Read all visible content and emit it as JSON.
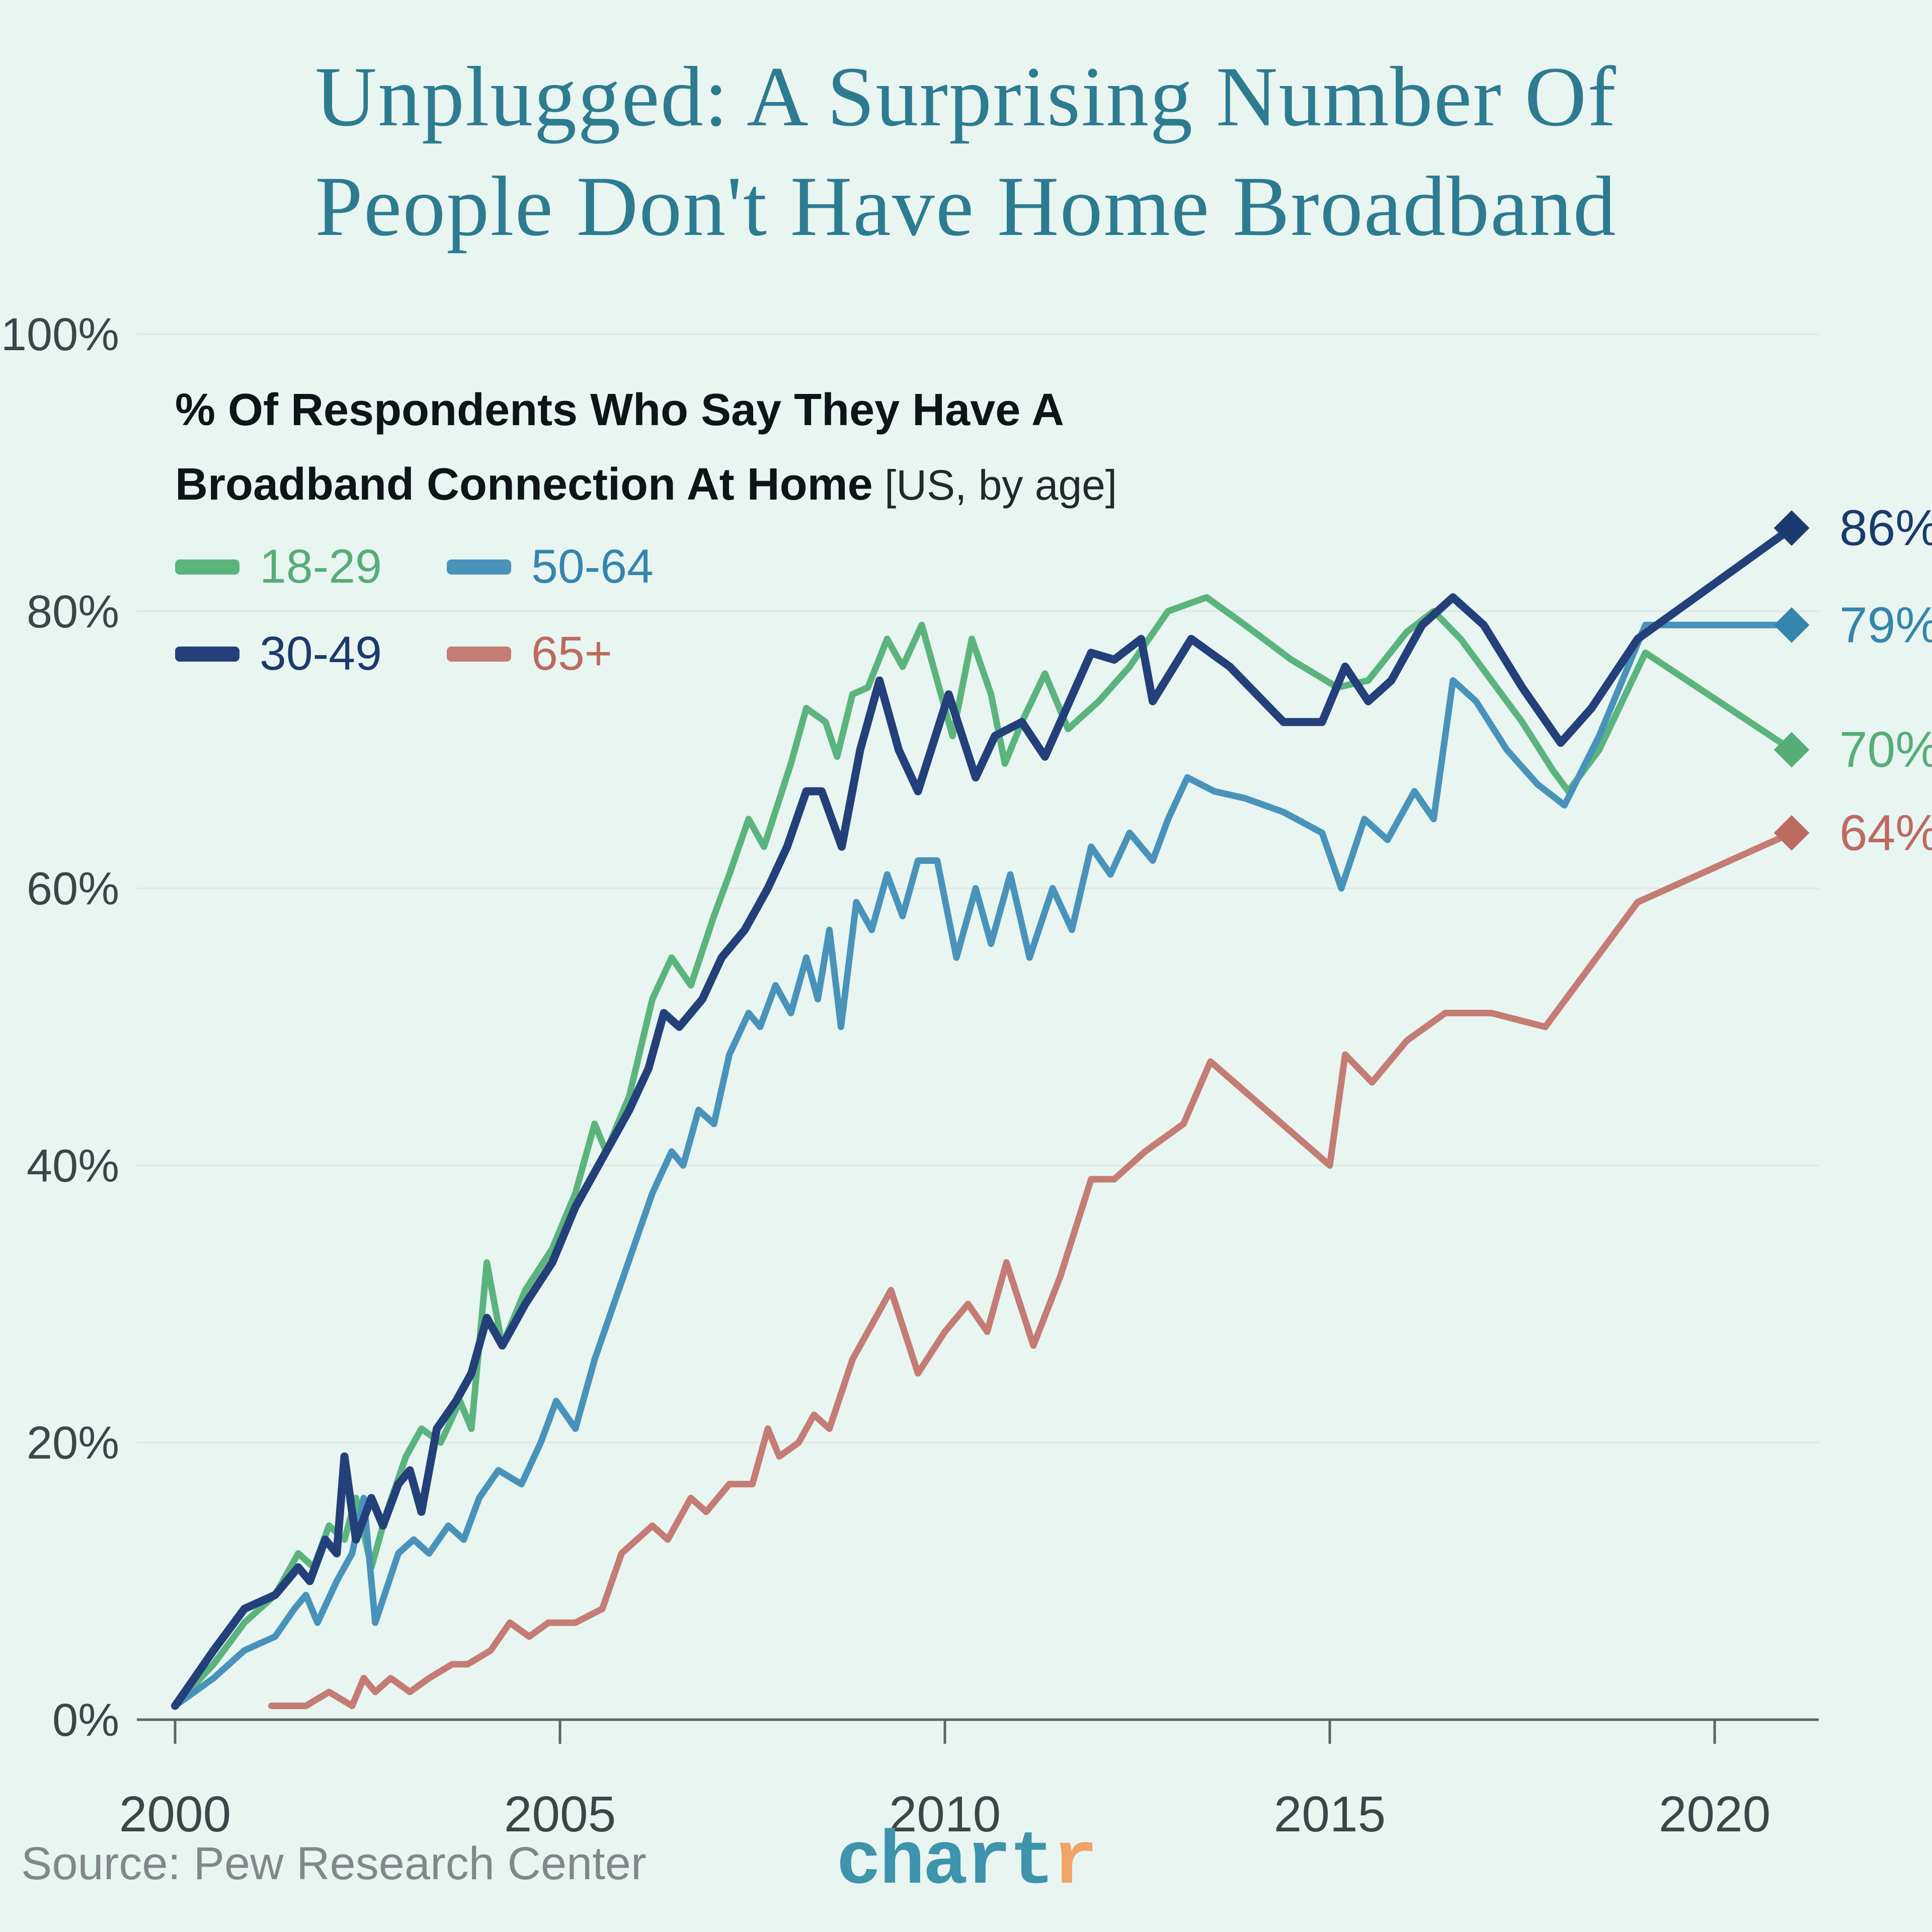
{
  "title": {
    "line1": "Unplugged: A Surprising Number Of",
    "line2": "People Don't Have Home Broadband"
  },
  "subtitle": {
    "line1": "% Of Respondents Who Say They Have A",
    "line2_main": "Broadband Connection At Home",
    "line2_note": " [US, by age]"
  },
  "source": "Source: Pew Research Center",
  "logo": {
    "part1": "chart",
    "part2": "r",
    "part1_color": "#3e93ad",
    "part2_color": "#f0a467"
  },
  "colors": {
    "background": "#e9f5f1",
    "title": "#2d7b91",
    "gridline": "#e0e7e4",
    "axis": "#5d6266",
    "tick_label": "#3e4549"
  },
  "chart_data": {
    "type": "line",
    "title": "% Of Respondents Who Say They Have A Broadband Connection At Home [US, by age]",
    "xlabel": "",
    "ylabel": "",
    "legend_position": "top-left",
    "grid": true,
    "x_axis": {
      "ticks": [
        "2000",
        "2005",
        "2010",
        "2015",
        "2020"
      ],
      "tick_values": [
        2000,
        2005,
        2010,
        2015,
        2020
      ],
      "range": [
        2000,
        2021
      ]
    },
    "y_axis": {
      "ticks": [
        "0%",
        "20%",
        "40%",
        "60%",
        "80%",
        "100%"
      ],
      "tick_values": [
        0,
        20,
        40,
        60,
        80,
        100
      ],
      "range": [
        0,
        100
      ]
    },
    "series": [
      {
        "name": "18-29",
        "color": "#5bb47d",
        "label_color": "#56ad77",
        "end_label": "70%",
        "end_value": 70,
        "points": [
          [
            2000.0,
            1
          ],
          [
            2000.5,
            4
          ],
          [
            2000.9,
            7
          ],
          [
            2001.3,
            9
          ],
          [
            2001.6,
            12
          ],
          [
            2001.8,
            11
          ],
          [
            2002.0,
            14
          ],
          [
            2002.2,
            13
          ],
          [
            2002.35,
            16
          ],
          [
            2002.55,
            11
          ],
          [
            2002.75,
            15
          ],
          [
            2003.0,
            19
          ],
          [
            2003.2,
            21
          ],
          [
            2003.45,
            20
          ],
          [
            2003.7,
            23
          ],
          [
            2003.85,
            21
          ],
          [
            2004.05,
            33
          ],
          [
            2004.25,
            27
          ],
          [
            2004.55,
            31
          ],
          [
            2004.9,
            34
          ],
          [
            2005.2,
            38
          ],
          [
            2005.45,
            43
          ],
          [
            2005.6,
            41
          ],
          [
            2005.9,
            45
          ],
          [
            2006.2,
            52
          ],
          [
            2006.45,
            55
          ],
          [
            2006.7,
            53
          ],
          [
            2007.0,
            58
          ],
          [
            2007.2,
            61
          ],
          [
            2007.45,
            65
          ],
          [
            2007.65,
            63
          ],
          [
            2008.0,
            69
          ],
          [
            2008.2,
            73
          ],
          [
            2008.45,
            72
          ],
          [
            2008.6,
            69.5
          ],
          [
            2008.8,
            74
          ],
          [
            2009.0,
            74.5
          ],
          [
            2009.25,
            78
          ],
          [
            2009.45,
            76
          ],
          [
            2009.7,
            79
          ],
          [
            2009.9,
            75
          ],
          [
            2010.1,
            71
          ],
          [
            2010.35,
            78
          ],
          [
            2010.6,
            74
          ],
          [
            2010.78,
            69
          ],
          [
            2011.0,
            72
          ],
          [
            2011.3,
            75.5
          ],
          [
            2011.6,
            71.5
          ],
          [
            2012.0,
            73.5
          ],
          [
            2012.4,
            76
          ],
          [
            2012.9,
            80
          ],
          [
            2013.4,
            81
          ],
          [
            2013.9,
            79
          ],
          [
            2014.5,
            76.5
          ],
          [
            2015.1,
            74.5
          ],
          [
            2015.5,
            75
          ],
          [
            2016.0,
            78.5
          ],
          [
            2016.35,
            80
          ],
          [
            2016.7,
            78
          ],
          [
            2017.1,
            75
          ],
          [
            2017.5,
            72
          ],
          [
            2017.9,
            68.5
          ],
          [
            2018.1,
            67
          ],
          [
            2018.5,
            70
          ],
          [
            2019.1,
            77
          ],
          [
            2021.0,
            70
          ]
        ]
      },
      {
        "name": "30-49",
        "color": "#24407a",
        "label_color": "#1b3a6d",
        "end_label": "86%",
        "end_value": 86,
        "points": [
          [
            2000.0,
            1
          ],
          [
            2000.5,
            5
          ],
          [
            2000.9,
            8
          ],
          [
            2001.3,
            9
          ],
          [
            2001.6,
            11
          ],
          [
            2001.75,
            10
          ],
          [
            2001.95,
            13
          ],
          [
            2002.1,
            12
          ],
          [
            2002.2,
            19
          ],
          [
            2002.35,
            13
          ],
          [
            2002.55,
            16
          ],
          [
            2002.7,
            14
          ],
          [
            2002.9,
            17
          ],
          [
            2003.05,
            18
          ],
          [
            2003.2,
            15
          ],
          [
            2003.4,
            21
          ],
          [
            2003.65,
            23
          ],
          [
            2003.85,
            25
          ],
          [
            2004.05,
            29
          ],
          [
            2004.25,
            27
          ],
          [
            2004.55,
            30
          ],
          [
            2004.9,
            33
          ],
          [
            2005.2,
            37
          ],
          [
            2005.5,
            40
          ],
          [
            2005.9,
            44
          ],
          [
            2006.15,
            47
          ],
          [
            2006.35,
            51
          ],
          [
            2006.55,
            50
          ],
          [
            2006.85,
            52
          ],
          [
            2007.1,
            55
          ],
          [
            2007.4,
            57
          ],
          [
            2007.7,
            60
          ],
          [
            2007.95,
            63
          ],
          [
            2008.2,
            67
          ],
          [
            2008.4,
            67
          ],
          [
            2008.66,
            63
          ],
          [
            2008.9,
            70
          ],
          [
            2009.15,
            75
          ],
          [
            2009.4,
            70
          ],
          [
            2009.65,
            67
          ],
          [
            2010.05,
            74
          ],
          [
            2010.4,
            68
          ],
          [
            2010.65,
            71
          ],
          [
            2011.0,
            72
          ],
          [
            2011.3,
            69.5
          ],
          [
            2011.9,
            77
          ],
          [
            2012.2,
            76.5
          ],
          [
            2012.55,
            78
          ],
          [
            2012.7,
            73.5
          ],
          [
            2013.2,
            78
          ],
          [
            2013.7,
            76
          ],
          [
            2014.4,
            72
          ],
          [
            2014.9,
            72
          ],
          [
            2015.2,
            76
          ],
          [
            2015.5,
            73.5
          ],
          [
            2015.8,
            75
          ],
          [
            2016.2,
            79
          ],
          [
            2016.6,
            81
          ],
          [
            2017.0,
            79
          ],
          [
            2017.5,
            74.5
          ],
          [
            2018.0,
            70.5
          ],
          [
            2018.4,
            73
          ],
          [
            2019.0,
            78
          ],
          [
            2021.0,
            86
          ]
        ]
      },
      {
        "name": "50-64",
        "color": "#4993bb",
        "label_color": "#3585ad",
        "end_label": "79%",
        "end_value": 79,
        "points": [
          [
            2000.0,
            1
          ],
          [
            2000.5,
            3
          ],
          [
            2000.9,
            5
          ],
          [
            2001.3,
            6
          ],
          [
            2001.55,
            8
          ],
          [
            2001.7,
            9
          ],
          [
            2001.85,
            7
          ],
          [
            2002.1,
            10
          ],
          [
            2002.3,
            12
          ],
          [
            2002.45,
            16
          ],
          [
            2002.6,
            7
          ],
          [
            2002.9,
            12
          ],
          [
            2003.1,
            13
          ],
          [
            2003.3,
            12
          ],
          [
            2003.55,
            14
          ],
          [
            2003.75,
            13
          ],
          [
            2003.95,
            16
          ],
          [
            2004.2,
            18
          ],
          [
            2004.5,
            17
          ],
          [
            2004.75,
            20
          ],
          [
            2004.95,
            23
          ],
          [
            2005.2,
            21
          ],
          [
            2005.45,
            26
          ],
          [
            2005.7,
            30
          ],
          [
            2005.95,
            34
          ],
          [
            2006.2,
            38
          ],
          [
            2006.45,
            41
          ],
          [
            2006.6,
            40
          ],
          [
            2006.8,
            44
          ],
          [
            2007.0,
            43
          ],
          [
            2007.2,
            48
          ],
          [
            2007.45,
            51
          ],
          [
            2007.6,
            50
          ],
          [
            2007.8,
            53
          ],
          [
            2008.0,
            51
          ],
          [
            2008.2,
            55
          ],
          [
            2008.35,
            52
          ],
          [
            2008.5,
            57
          ],
          [
            2008.65,
            50
          ],
          [
            2008.85,
            59
          ],
          [
            2009.05,
            57
          ],
          [
            2009.25,
            61
          ],
          [
            2009.45,
            58
          ],
          [
            2009.65,
            62
          ],
          [
            2009.9,
            62
          ],
          [
            2010.15,
            55
          ],
          [
            2010.4,
            60
          ],
          [
            2010.6,
            56
          ],
          [
            2010.85,
            61
          ],
          [
            2011.1,
            55
          ],
          [
            2011.4,
            60
          ],
          [
            2011.65,
            57
          ],
          [
            2011.9,
            63
          ],
          [
            2012.15,
            61
          ],
          [
            2012.4,
            64
          ],
          [
            2012.7,
            62
          ],
          [
            2012.9,
            65
          ],
          [
            2013.15,
            68
          ],
          [
            2013.5,
            67
          ],
          [
            2013.9,
            66.5
          ],
          [
            2014.4,
            65.5
          ],
          [
            2014.9,
            64
          ],
          [
            2015.15,
            60
          ],
          [
            2015.45,
            65
          ],
          [
            2015.75,
            63.5
          ],
          [
            2016.1,
            67
          ],
          [
            2016.35,
            65
          ],
          [
            2016.6,
            75
          ],
          [
            2016.9,
            73.5
          ],
          [
            2017.3,
            70
          ],
          [
            2017.7,
            67.5
          ],
          [
            2018.05,
            66
          ],
          [
            2018.5,
            71
          ],
          [
            2019.1,
            79
          ],
          [
            2021.0,
            79
          ]
        ]
      },
      {
        "name": "65+",
        "color": "#c47c74",
        "label_color": "#bd6a60",
        "end_label": "64%",
        "end_value": 64,
        "points": [
          [
            2001.25,
            1
          ],
          [
            2001.7,
            1
          ],
          [
            2002.0,
            2
          ],
          [
            2002.3,
            1
          ],
          [
            2002.45,
            3
          ],
          [
            2002.6,
            2
          ],
          [
            2002.8,
            3
          ],
          [
            2003.05,
            2
          ],
          [
            2003.3,
            3
          ],
          [
            2003.6,
            4
          ],
          [
            2003.8,
            4
          ],
          [
            2004.1,
            5
          ],
          [
            2004.35,
            7
          ],
          [
            2004.6,
            6
          ],
          [
            2004.85,
            7
          ],
          [
            2005.2,
            7
          ],
          [
            2005.55,
            8
          ],
          [
            2005.8,
            12
          ],
          [
            2006.0,
            13
          ],
          [
            2006.2,
            14
          ],
          [
            2006.4,
            13
          ],
          [
            2006.7,
            16
          ],
          [
            2006.9,
            15
          ],
          [
            2007.2,
            17
          ],
          [
            2007.5,
            17
          ],
          [
            2007.7,
            21
          ],
          [
            2007.85,
            19
          ],
          [
            2008.1,
            20
          ],
          [
            2008.3,
            22
          ],
          [
            2008.5,
            21
          ],
          [
            2008.8,
            26
          ],
          [
            2009.0,
            28
          ],
          [
            2009.3,
            31
          ],
          [
            2009.65,
            25
          ],
          [
            2010.0,
            28
          ],
          [
            2010.3,
            30
          ],
          [
            2010.55,
            28
          ],
          [
            2010.8,
            33
          ],
          [
            2011.15,
            27
          ],
          [
            2011.5,
            32
          ],
          [
            2011.9,
            39
          ],
          [
            2012.2,
            39
          ],
          [
            2012.6,
            41
          ],
          [
            2013.1,
            43
          ],
          [
            2013.45,
            47.5
          ],
          [
            2015.0,
            40
          ],
          [
            2015.2,
            48
          ],
          [
            2015.55,
            46
          ],
          [
            2016.0,
            49
          ],
          [
            2016.5,
            51
          ],
          [
            2017.1,
            51
          ],
          [
            2017.8,
            50
          ],
          [
            2019.0,
            59
          ],
          [
            2021.0,
            64
          ]
        ]
      }
    ]
  }
}
